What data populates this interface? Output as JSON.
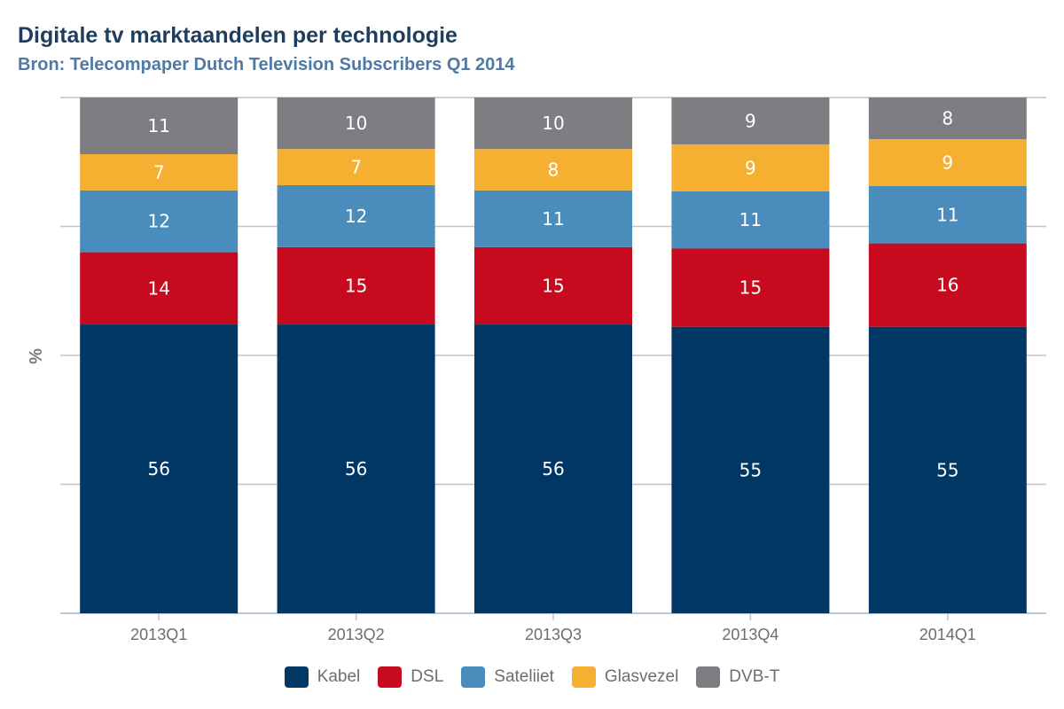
{
  "chart_data": {
    "type": "bar",
    "stacked": true,
    "title": "Digitale tv marktaandelen per technologie",
    "subtitle": "Bron: Telecompaper Dutch Television Subscribers Q1 2014",
    "xlabel": "",
    "ylabel": "%",
    "ylim": [
      0,
      100
    ],
    "grid": true,
    "legend_position": "bottom",
    "categories": [
      "2013Q1",
      "2013Q2",
      "2013Q3",
      "2013Q4",
      "2014Q1"
    ],
    "series": [
      {
        "name": "Kabel",
        "color": "#003764",
        "values": [
          56,
          56,
          56,
          55,
          55
        ]
      },
      {
        "name": "DSL",
        "color": "#c70a1e",
        "values": [
          14,
          15,
          15,
          15,
          16
        ]
      },
      {
        "name": "Sateliiet",
        "color": "#4a8cbb",
        "values": [
          12,
          12,
          11,
          11,
          11
        ]
      },
      {
        "name": "Glasvezel",
        "color": "#f5b031",
        "values": [
          7,
          7,
          8,
          9,
          9
        ]
      },
      {
        "name": "DVB-T",
        "color": "#7d7d82",
        "values": [
          11,
          10,
          10,
          9,
          8
        ]
      }
    ]
  }
}
